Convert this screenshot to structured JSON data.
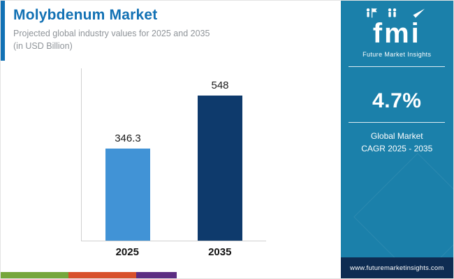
{
  "chart_data": {
    "type": "bar",
    "title": "Molybdenum Market",
    "subtitle_lines": [
      "Projected global industry values for 2025 and 2035",
      "(in USD Billion)"
    ],
    "categories": [
      "2025",
      "2035"
    ],
    "values": [
      346.3,
      548
    ],
    "value_labels": [
      "346.3",
      "548"
    ],
    "bar_colors": [
      "#4193d6",
      "#0e3a6c"
    ],
    "unit": "USD Billion",
    "ylim": [
      0,
      650
    ],
    "grid": false,
    "legend": "none",
    "axis_color": "#cfcfcf"
  },
  "header": {
    "accent_color": "#1271b4",
    "title_color": "#1271b4"
  },
  "sidebar": {
    "background": "#1b80aa",
    "logo_text": "fmi",
    "logo_tagline": "Future Market Insights",
    "logo_icons": [
      "runner-flag-icon",
      "people-icon",
      "plane-icon"
    ],
    "cagr_value": "4.7%",
    "cagr_caption_lines": [
      "Global Market",
      "CAGR 2025 - 2035"
    ],
    "website": "www.futuremarketinsights.com",
    "footer_background": "#0e2c52"
  },
  "footer_strips": {
    "colors": [
      "#76a73c",
      "#d8502b",
      "#5c2d82"
    ]
  }
}
